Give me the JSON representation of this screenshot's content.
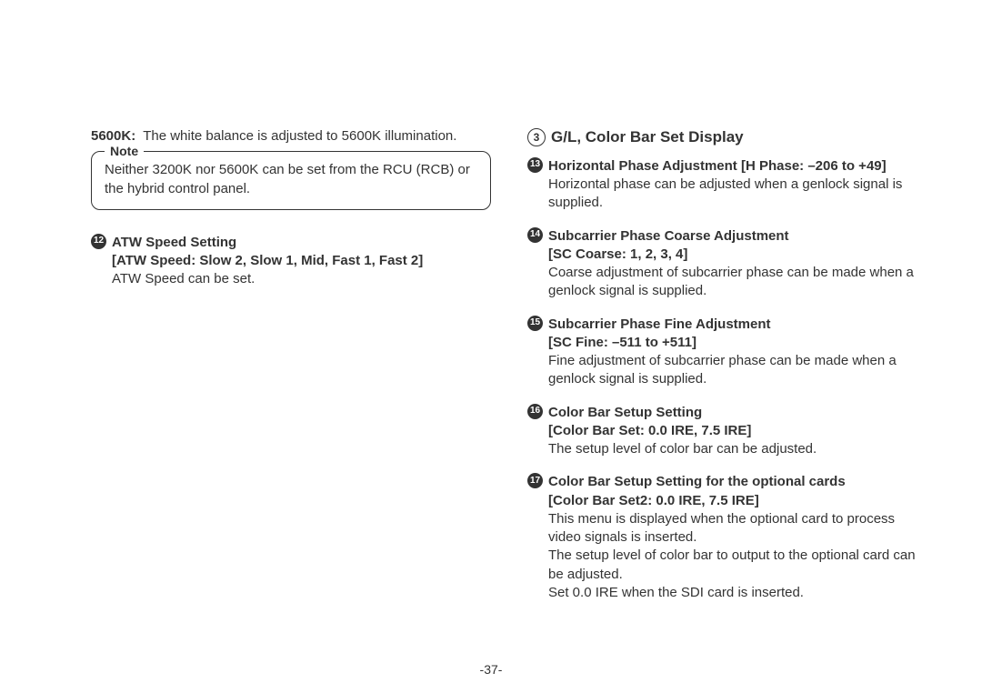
{
  "pageNumber": "-37-",
  "left": {
    "def5600k_key": "5600K:",
    "def5600k_val": "The white balance is adjusted to 5600K illumination.",
    "noteLabel": "Note",
    "noteText": "Neither 3200K nor 5600K can be set from the RCU (RCB) or the hybrid control panel.",
    "item12_num": "12",
    "item12_title": "ATW Speed Setting",
    "item12_param": "[ATW Speed: Slow 2, Slow 1, Mid, Fast 1, Fast 2]",
    "item12_body": "ATW Speed can be set."
  },
  "right": {
    "heading_num": "3",
    "heading_text": "G/L, Color Bar Set Display",
    "item13_num": "13",
    "item13_title": "Horizontal Phase Adjustment [H Phase: –206 to +49]",
    "item13_body": "Horizontal phase can be adjusted when a genlock signal is supplied.",
    "item14_num": "14",
    "item14_title": "Subcarrier Phase Coarse Adjustment",
    "item14_param": "[SC Coarse: 1, 2, 3, 4]",
    "item14_body": "Coarse adjustment of subcarrier phase can be made when a genlock signal is supplied.",
    "item15_num": "15",
    "item15_title": "Subcarrier Phase Fine Adjustment",
    "item15_param": "[SC Fine: –511 to +511]",
    "item15_body": "Fine adjustment of subcarrier phase can be made when a genlock signal is supplied.",
    "item16_num": "16",
    "item16_title": "Color Bar Setup Setting",
    "item16_param": "[Color Bar Set: 0.0 IRE, 7.5 IRE]",
    "item16_body": "The setup level of color bar can be adjusted.",
    "item17_num": "17",
    "item17_title": "Color Bar Setup Setting for the optional cards",
    "item17_param": "[Color Bar Set2: 0.0 IRE, 7.5 IRE]",
    "item17_body1": "This menu is displayed when the optional card to process video signals is inserted.",
    "item17_body2": "The setup level of color bar to output to the optional card can be adjusted.",
    "item17_body3": "Set 0.0 IRE when the SDI card is inserted."
  }
}
